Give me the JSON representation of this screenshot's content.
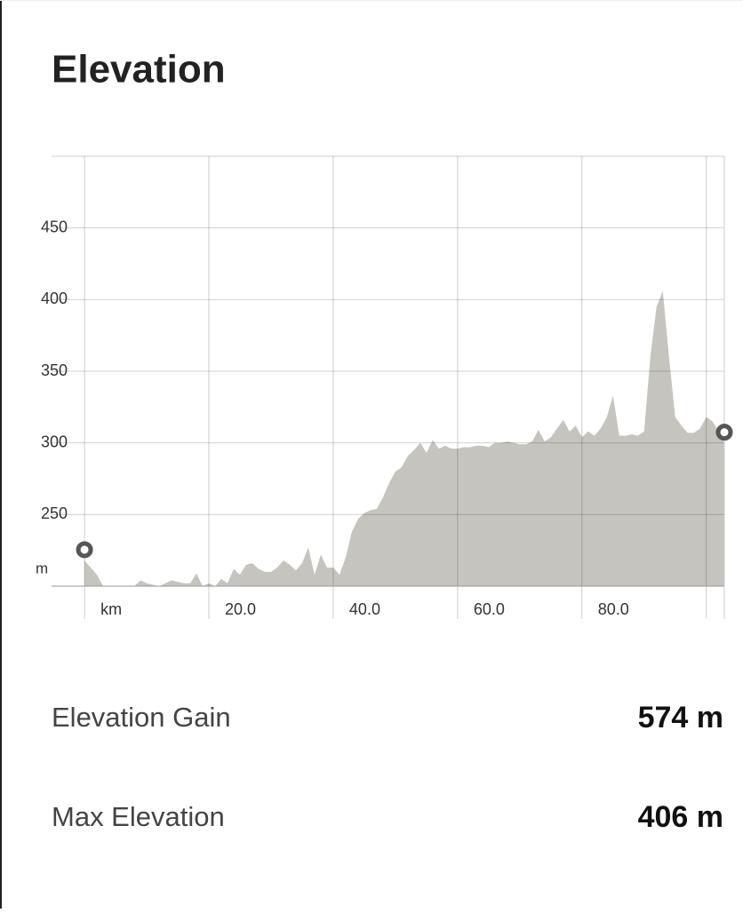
{
  "chart_data": {
    "type": "area",
    "title": "Elevation",
    "y_unit": "m",
    "color": "#c5c4bf",
    "grid": true,
    "x": [
      0,
      2,
      3,
      6,
      8,
      9,
      10,
      12,
      14,
      16,
      17,
      18,
      19,
      20,
      21,
      22,
      23,
      24,
      25,
      26,
      27,
      28,
      29,
      30,
      31,
      32,
      33,
      34,
      35,
      36,
      37,
      38,
      39,
      40,
      41,
      42,
      43,
      44,
      45,
      46,
      47,
      48,
      49,
      50,
      51,
      52,
      53,
      54,
      55,
      56,
      57,
      58,
      59,
      60,
      61,
      62,
      63,
      64,
      65,
      66,
      67,
      68,
      69,
      70,
      71,
      72,
      73,
      74,
      75,
      76,
      77,
      78,
      79,
      80,
      81,
      82,
      83,
      84,
      85,
      86,
      87,
      88,
      89,
      90,
      91,
      92,
      93,
      94,
      95,
      96,
      97,
      98,
      99,
      100,
      101,
      102,
      102.9
    ],
    "values": [
      218,
      208,
      200,
      200,
      200,
      204,
      202,
      200,
      204,
      202,
      202,
      209,
      200,
      202,
      200,
      205,
      202,
      212,
      208,
      215,
      216,
      212,
      210,
      210,
      213,
      218,
      215,
      211,
      216,
      227,
      208,
      222,
      213,
      213,
      208,
      220,
      238,
      247,
      251,
      253,
      254,
      262,
      272,
      280,
      283,
      291,
      295,
      300,
      293,
      302,
      296,
      298,
      296,
      296,
      297,
      297,
      298,
      298,
      297,
      300,
      300,
      301,
      300,
      299,
      299,
      301,
      309,
      301,
      304,
      310,
      316,
      308,
      312,
      304,
      308,
      305,
      310,
      318,
      333,
      305,
      305,
      306,
      305,
      308,
      360,
      395,
      406,
      360,
      318,
      312,
      307,
      307,
      310,
      318,
      315,
      308,
      300
    ],
    "xlim": [
      -5.3,
      102.9
    ],
    "ylim": [
      200,
      500
    ],
    "xticks": [
      {
        "value": 0,
        "label": "km"
      },
      {
        "value": 20,
        "label": "20.0"
      },
      {
        "value": 40,
        "label": "40.0"
      },
      {
        "value": 60,
        "label": "60.0"
      },
      {
        "value": 80,
        "label": "80.0"
      },
      {
        "value": 100,
        "label": null
      }
    ],
    "yticks": [
      250,
      300,
      350,
      400,
      450
    ]
  },
  "stats": [
    {
      "label": "Elevation Gain",
      "value": "574 m"
    },
    {
      "label": "Max Elevation",
      "value": "406 m"
    }
  ]
}
